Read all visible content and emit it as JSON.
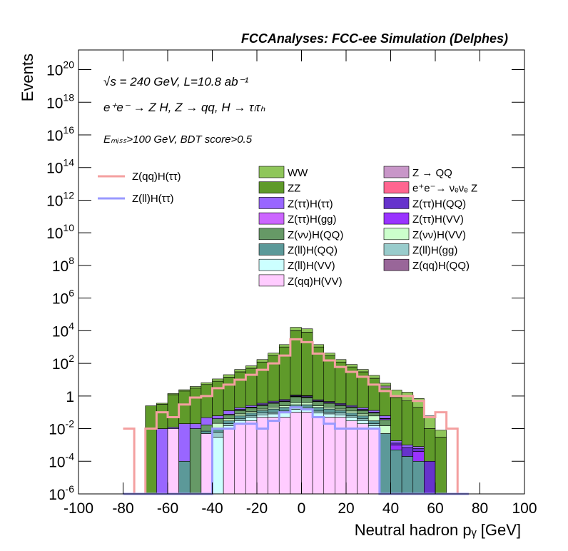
{
  "chart_data": {
    "type": "stacked-histogram",
    "title": "FCCAnalyses: FCC-ee Simulation (Delphes)",
    "annotations": [
      "√s = 240 GeV, L=10.8 ab⁻¹",
      "e⁺e⁻ → Z H, Z → qq, H → τₗτₕ",
      "Eₘᵢₛₛ>100 GeV, BDT score>0.5"
    ],
    "x_label": "Neutral hadron pᵧ [GeV]",
    "y_label": "Events",
    "log_y": true,
    "xlim": [
      -100,
      100
    ],
    "ylim": [
      1e-06,
      1.6e+21
    ],
    "xticks": [
      -100,
      -80,
      -60,
      -40,
      -20,
      0,
      20,
      40,
      60,
      80,
      100
    ],
    "yticks": [
      {
        "value": 1e-06,
        "label": "10^-6"
      },
      {
        "value": 0.0001,
        "label": "10^-4"
      },
      {
        "value": 0.01,
        "label": "10^-2"
      },
      1,
      {
        "value": 100,
        "label": "10^2"
      },
      {
        "value": 10000,
        "label": "10^4"
      },
      {
        "value": 1000000,
        "label": "10^6"
      },
      {
        "value": 100000000,
        "label": "10^8"
      },
      {
        "value": 10000000000,
        "label": "10^10"
      },
      {
        "value": 1000000000000,
        "label": "10^12"
      },
      {
        "value": 100000000000000,
        "label": "10^14"
      },
      {
        "value": 10000000000000000,
        "label": "10^16"
      },
      {
        "value": 1000000000000000000,
        "label": "10^18"
      },
      {
        "value": 100000000000000000000,
        "label": "10^20"
      }
    ],
    "bins": [
      -80,
      -75,
      -70,
      -65,
      -60,
      -55,
      -50,
      -45,
      -40,
      -35,
      -30,
      -25,
      -20,
      -15,
      -10,
      -5,
      0,
      5,
      10,
      15,
      20,
      25,
      30,
      35,
      40,
      45,
      50,
      55,
      60,
      65,
      70,
      75
    ],
    "series": [
      {
        "name": "WW",
        "color": "#8fc65a",
        "values": [
          0,
          0,
          0,
          0.05,
          0.2,
          0.4,
          0.8,
          1.5,
          3,
          6,
          12,
          20,
          50,
          120,
          400,
          6000,
          5000,
          400,
          120,
          50,
          25,
          12,
          6,
          2,
          1.5,
          1.2,
          0.5,
          0.05,
          0.005,
          0,
          0
        ]
      },
      {
        "name": "Z → QQ",
        "color": "#c896c8",
        "values": [
          0,
          0,
          0,
          0,
          0,
          0,
          0,
          0,
          0.02,
          0.05,
          0.1,
          0.2,
          0.5,
          2,
          8,
          60,
          50,
          8,
          2,
          0.5,
          0.2,
          0.1,
          0.05,
          1,
          0,
          0,
          0,
          0,
          0,
          0,
          0
        ]
      },
      {
        "name": "ZZ",
        "color": "#5f9a2a",
        "values": [
          0,
          0,
          0.25,
          0.3,
          1.2,
          2,
          3,
          5,
          8,
          14,
          30,
          50,
          120,
          300,
          1000,
          10000,
          8000,
          1000,
          300,
          120,
          60,
          30,
          12,
          3,
          0.8,
          0.5,
          0.2,
          0.01,
          0.003,
          0,
          0
        ]
      },
      {
        "name": "e⁺e⁻→ νₑνₑ Z",
        "color": "#ff6690",
        "values": [
          0,
          0,
          0,
          0,
          0,
          0,
          0,
          0,
          0,
          0,
          0,
          0,
          0,
          0,
          0,
          0.05,
          0.05,
          0,
          0,
          0,
          0,
          0,
          0,
          0,
          0,
          0,
          0,
          0,
          0,
          0,
          0
        ]
      },
      {
        "name": "Z(ττ)H(ττ)",
        "color": "#9966ff",
        "values": [
          0,
          0,
          0,
          0.01,
          0.002,
          0.02,
          0.01,
          0.03,
          0.02,
          0.05,
          0.04,
          0.05,
          0.06,
          0.08,
          0.1,
          0.1,
          0.1,
          0.08,
          0.06,
          0.05,
          0.04,
          0.04,
          0.03,
          0.02,
          0.0005,
          0.0003,
          0.0002,
          0,
          0,
          0,
          0
        ]
      },
      {
        "name": "Z(ττ)H(QQ)",
        "color": "#6633cc",
        "values": [
          0,
          0,
          0,
          0,
          0,
          0,
          0,
          0,
          0,
          0,
          0.005,
          0.005,
          0.01,
          0.01,
          0.02,
          0.05,
          0.05,
          0.02,
          0.01,
          0.01,
          0.005,
          0.005,
          0.005,
          0.002,
          0.0003,
          0.0005,
          0.0002,
          0.0001,
          0,
          0,
          0
        ]
      },
      {
        "name": "Z(ττ)H(gg)",
        "color": "#cc66ff",
        "values": [
          0,
          0,
          0,
          0,
          0,
          0,
          0,
          0,
          0,
          0,
          0.005,
          0.005,
          0.008,
          0.01,
          0.01,
          0.02,
          0.02,
          0.01,
          0.01,
          0.008,
          0.005,
          0.005,
          0,
          0,
          0,
          0,
          0,
          0,
          0,
          0,
          0
        ]
      },
      {
        "name": "Z(ττ)H(VV)",
        "color": "#9933ff",
        "values": [
          0,
          0,
          0,
          0,
          0,
          0,
          0,
          0,
          0,
          0.005,
          0.01,
          0.01,
          0.02,
          0.02,
          0.03,
          0.05,
          0.05,
          0.03,
          0.02,
          0.02,
          0.01,
          0.01,
          0.005,
          0.005,
          0.0005,
          0,
          0.0003,
          0,
          0,
          0,
          0
        ]
      },
      {
        "name": "Z(νν)H(QQ)",
        "color": "#669966",
        "values": [
          0,
          0,
          0,
          0,
          0,
          0,
          0.01,
          0.01,
          0.02,
          0.03,
          0.05,
          0.08,
          0.1,
          0.15,
          0.2,
          0.5,
          0.4,
          0.2,
          0.15,
          0.1,
          0.08,
          0.05,
          0.03,
          0.02,
          0,
          0,
          0,
          0,
          0,
          0,
          0
        ]
      },
      {
        "name": "Z(νν)H(VV)",
        "color": "#ccffcc",
        "values": [
          0,
          0,
          0,
          0,
          0,
          0,
          0,
          0,
          0.01,
          0.01,
          0.02,
          0.02,
          0.03,
          0.05,
          0.05,
          0.1,
          0.1,
          0.05,
          0.05,
          0.03,
          0.03,
          0.02,
          0.03,
          0.01,
          0,
          0,
          0,
          0,
          0,
          0,
          0
        ]
      },
      {
        "name": "Z(ll)H(QQ)",
        "color": "#5c9999",
        "values": [
          0,
          0,
          0,
          0,
          0,
          0.0001,
          0,
          0.002,
          0.005,
          0.01,
          0.02,
          0.03,
          0.04,
          0.06,
          0.08,
          0.1,
          0.1,
          0.08,
          0.06,
          0.04,
          0.03,
          0.02,
          0.01,
          0.005,
          0.0005,
          0.0002,
          0.0001,
          0,
          0,
          0,
          0
        ]
      },
      {
        "name": "Z(ll)H(gg)",
        "color": "#99cccc",
        "values": [
          0,
          0,
          0,
          0,
          0,
          0,
          0,
          0,
          0.003,
          0.005,
          0.01,
          0.01,
          0.02,
          0.02,
          0.03,
          0.04,
          0.04,
          0.03,
          0.02,
          0.02,
          0.01,
          0.01,
          0.005,
          0,
          0,
          0,
          0,
          0,
          0,
          0,
          0
        ]
      },
      {
        "name": "Z(ll)H(VV)",
        "color": "#ccffff",
        "values": [
          0,
          0,
          0,
          0,
          0,
          0,
          0,
          0,
          0.003,
          0.005,
          0.01,
          0.02,
          0.02,
          0.03,
          0.04,
          0.05,
          0.05,
          0.04,
          0.03,
          0.02,
          0.02,
          0.01,
          0.005,
          0,
          0,
          0,
          0,
          0,
          0,
          0,
          0
        ]
      },
      {
        "name": "Z(qq)H(QQ)",
        "color": "#996699",
        "values": [
          0,
          0,
          0,
          0,
          0,
          0,
          0,
          0,
          0,
          0,
          0,
          0,
          0,
          0,
          0,
          0.001,
          0.001,
          0,
          0,
          0,
          0,
          0,
          0,
          0,
          0,
          0,
          0,
          0,
          0,
          0,
          0
        ]
      },
      {
        "name": "Z(qq)H(VV)",
        "color": "#ffccff",
        "values": [
          0,
          0,
          0,
          0,
          0.01,
          0,
          0,
          0.005,
          0,
          0.01,
          0.02,
          0.03,
          0.05,
          0.05,
          0.05,
          0.1,
          0.1,
          0.05,
          0.05,
          0.05,
          0.03,
          0.02,
          0.01,
          0,
          0,
          0,
          0,
          0,
          0,
          0,
          0
        ]
      }
    ],
    "overlay": [
      {
        "name": "Z(qq)H(ττ)",
        "color": "#f4a0a0",
        "values": [
          0.01,
          0,
          0.01,
          0.1,
          0.05,
          0.3,
          0.8,
          1,
          3,
          5,
          10,
          20,
          40,
          100,
          300,
          3000,
          2000,
          400,
          150,
          60,
          30,
          15,
          5,
          2,
          1,
          1,
          0.5,
          0.05,
          0.1,
          0.01,
          0
        ]
      },
      {
        "name": "Z(ll)H(ττ)",
        "color": "#9999ff",
        "values": [
          0,
          0,
          0,
          0,
          0,
          0,
          0,
          0,
          0.01,
          0.01,
          0.02,
          0.02,
          0.01,
          0.03,
          0.1,
          0.2,
          0.15,
          0.05,
          0.02,
          0.01,
          0.01,
          0.01,
          0.01,
          0,
          0,
          0,
          0,
          0,
          0,
          0,
          0
        ]
      }
    ]
  }
}
